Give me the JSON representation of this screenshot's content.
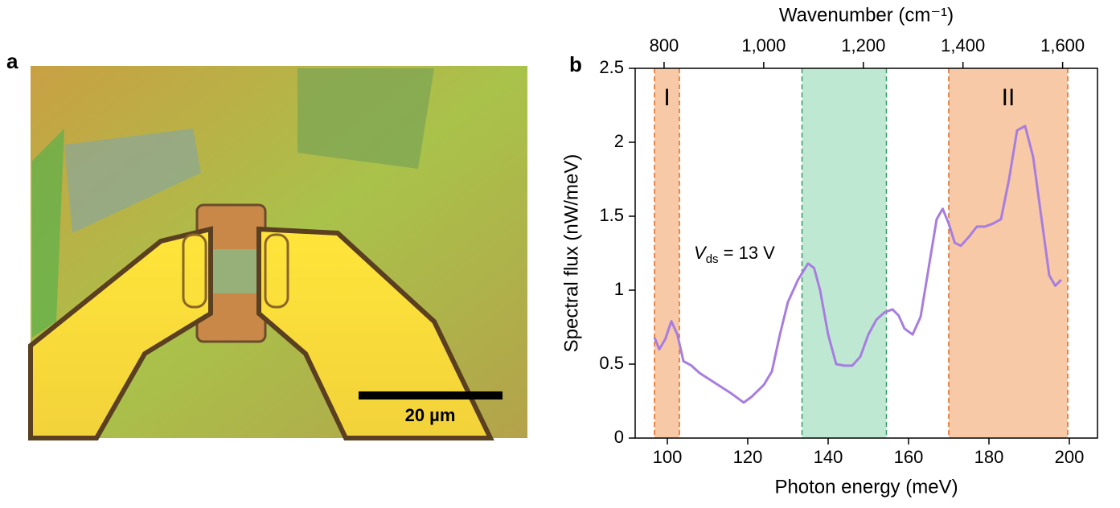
{
  "panel_a": {
    "label": "a",
    "scale_bar": "20 µm"
  },
  "chart_data": {
    "type": "line",
    "panel_label": "b",
    "xlabel": "Photon energy (meV)",
    "ylabel": "Spectral flux (nW/meV)",
    "x2label": "Wavenumber (cm⁻¹)",
    "xlim": [
      92,
      207
    ],
    "ylim": [
      0,
      2.5
    ],
    "x2lim": [
      742,
      1670
    ],
    "xticks": [
      100,
      120,
      140,
      160,
      180,
      200
    ],
    "yticks": [
      0,
      0.5,
      1,
      1.5,
      2,
      2.5
    ],
    "x2ticks": [
      800,
      {
        "value": 1000,
        "label": "1,000"
      },
      {
        "value": 1200,
        "label": "1,200"
      },
      {
        "value": 1400,
        "label": "1,400"
      },
      {
        "value": 1600,
        "label": "1,600"
      }
    ],
    "bands": [
      {
        "name": "I",
        "range": [
          96.8,
          103
        ],
        "color": "#f8c9a6"
      },
      {
        "range": [
          133.5,
          154.5
        ],
        "color": "#bfe8d2"
      },
      {
        "name": "II",
        "range": [
          170,
          199.6
        ],
        "color": "#f8c9a6"
      }
    ],
    "annotation": {
      "italic": "V",
      "sub": "ds",
      "rest": " = 13 V"
    },
    "series": [
      {
        "color": "#a77ddf",
        "x": [
          96.8,
          98,
          99.5,
          101,
          102.5,
          104,
          106,
          108,
          112,
          116,
          119,
          121,
          124,
          126,
          128,
          130,
          132.5,
          135,
          136.5,
          138,
          140,
          142,
          144,
          146,
          148,
          150,
          152,
          154,
          156,
          157.5,
          159,
          161,
          163,
          165,
          167,
          168.5,
          170,
          171.5,
          173,
          175,
          177,
          179,
          181,
          183,
          185,
          187,
          189,
          191,
          193,
          195,
          196.5,
          198
        ],
        "values": [
          0.68,
          0.6,
          0.67,
          0.79,
          0.7,
          0.52,
          0.49,
          0.44,
          0.37,
          0.3,
          0.24,
          0.28,
          0.36,
          0.45,
          0.7,
          0.92,
          1.07,
          1.18,
          1.15,
          1.0,
          0.7,
          0.5,
          0.49,
          0.49,
          0.55,
          0.7,
          0.8,
          0.85,
          0.87,
          0.83,
          0.74,
          0.7,
          0.82,
          1.15,
          1.48,
          1.55,
          1.45,
          1.32,
          1.3,
          1.36,
          1.43,
          1.43,
          1.45,
          1.48,
          1.75,
          2.08,
          2.11,
          1.9,
          1.5,
          1.1,
          1.03,
          1.07
        ]
      }
    ]
  }
}
